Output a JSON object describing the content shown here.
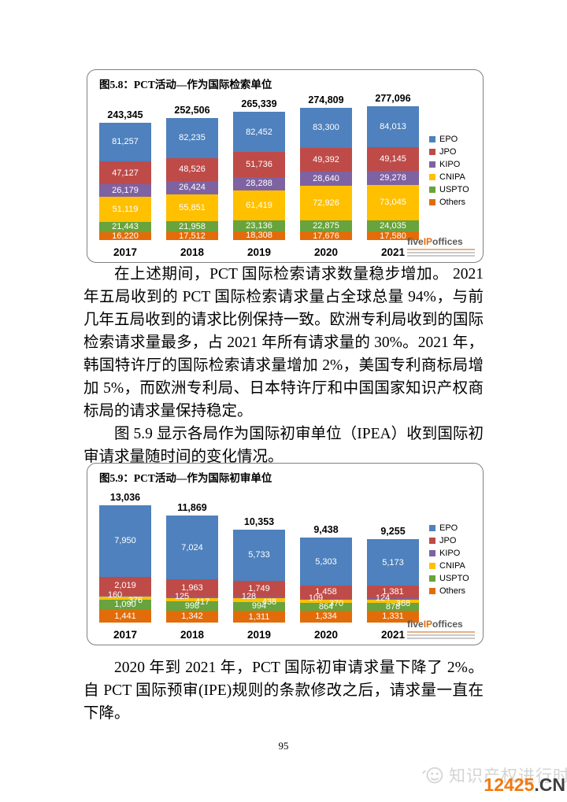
{
  "page": {
    "number": "95"
  },
  "logo": {
    "five": "five",
    "ip": "IP",
    "offices": "offices"
  },
  "watermark": {
    "brand": "知识产权进行时",
    "site_number": "12425",
    "site_suffix": ".CN"
  },
  "paragraphs": [
    "在上述期间，PCT 国际检索请求数量稳步增加。 2021 年五局收到的 PCT 国际检索请求量占全球总量 94%，与前几年五局收到的请求比例保持一致。欧洲专利局收到的国际检索请求量最多，占 2021 年所有请求量的 30%。2021 年，韩国特许厅的国际检索请求量增加 2%，美国专利商标局增加 5%，而欧洲专利局、日本特许厅和中国国家知识产权商标局的请求量保持稳定。",
    "图 5.9 显示各局作为国际初审单位（IPEA）收到国际初审请求量随时间的变化情况。",
    "2020 年到 2021 年，PCT 国际初审请求量下降了 2%。自 PCT 国际预审(IPE)规则的条款修改之后，请求量一直在下降。"
  ],
  "chart_data": [
    {
      "type": "stacked_bar",
      "title": "图5.8：PCT活动—作为国际检索单位",
      "categories": [
        "2017",
        "2018",
        "2019",
        "2020",
        "2021"
      ],
      "totals": [
        243345,
        252506,
        265339,
        274809,
        277096
      ],
      "series": [
        {
          "name": "EPO",
          "color": "#4E81BD",
          "values": [
            81257,
            82235,
            82452,
            83300,
            84013
          ]
        },
        {
          "name": "JPO",
          "color": "#BE4B48",
          "values": [
            47127,
            48526,
            51736,
            49392,
            49145
          ]
        },
        {
          "name": "KIPO",
          "color": "#7E62A1",
          "values": [
            26179,
            26424,
            28288,
            28640,
            29278
          ]
        },
        {
          "name": "CNIPA",
          "color": "#FFC000",
          "values": [
            51119,
            55851,
            61419,
            72926,
            73045
          ]
        },
        {
          "name": "USPTO",
          "color": "#68A33D",
          "values": [
            21443,
            21958,
            23136,
            22875,
            24035
          ]
        },
        {
          "name": "Others",
          "color": "#E36C0A",
          "values": [
            16220,
            17512,
            18308,
            17676,
            17580
          ]
        }
      ],
      "stack_order": "top-to-bottom as listed",
      "legend_position": "right",
      "grid": false,
      "value_labels": "white, inside segments; bold totals above bars"
    },
    {
      "type": "stacked_bar",
      "title": "图5.9：PCT活动—作为国际初审单位",
      "categories": [
        "2017",
        "2018",
        "2019",
        "2020",
        "2021"
      ],
      "totals": [
        13036,
        11869,
        10353,
        9438,
        9255
      ],
      "series": [
        {
          "name": "EPO",
          "color": "#4E81BD",
          "values": [
            7950,
            7024,
            5733,
            5303,
            5173
          ]
        },
        {
          "name": "JPO",
          "color": "#BE4B48",
          "values": [
            2019,
            1963,
            1749,
            1458,
            1381
          ]
        },
        {
          "name": "KIPO",
          "color": "#7E62A1",
          "values": [
            160,
            125,
            128,
            109,
            124
          ]
        },
        {
          "name": "CNIPA",
          "color": "#FFC000",
          "values": [
            376,
            417,
            438,
            370,
            368
          ]
        },
        {
          "name": "USPTO",
          "color": "#68A33D",
          "values": [
            1090,
            998,
            994,
            864,
            878
          ]
        },
        {
          "name": "Others",
          "color": "#E36C0A",
          "values": [
            1441,
            1342,
            1311,
            1334,
            1331
          ]
        }
      ],
      "stack_order": "top-to-bottom as listed",
      "legend_position": "right",
      "grid": false,
      "value_labels": "white, inside segments; KIPO and CNIPA labels overlap the thin bands",
      "thin_label_offsets": {
        "KIPO": {
          "x": -13,
          "y": -1
        },
        "CNIPA": {
          "x": 13,
          "y": 3
        }
      }
    }
  ]
}
